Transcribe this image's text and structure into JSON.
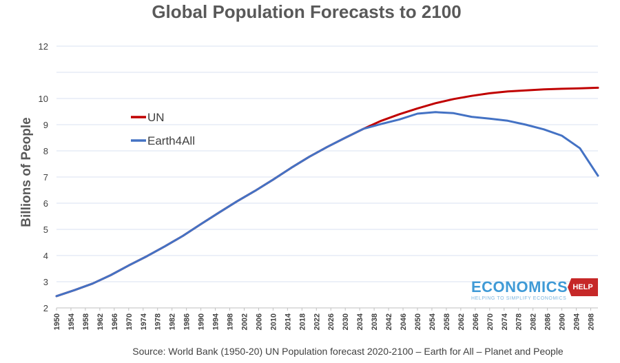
{
  "chart_data": {
    "type": "line",
    "title": "Global Population Forecasts to 2100",
    "xlabel": "",
    "ylabel": "Billions of  People",
    "ylim": [
      2,
      12
    ],
    "xlim": [
      1950,
      2100
    ],
    "yticks": [
      2,
      3,
      4,
      5,
      6,
      7,
      8,
      9,
      10,
      12
    ],
    "xticks": [
      1950,
      1954,
      1958,
      1962,
      1966,
      1970,
      1974,
      1978,
      1982,
      1986,
      1990,
      1994,
      1998,
      2002,
      2006,
      2010,
      2014,
      2018,
      2022,
      2026,
      2030,
      2034,
      2038,
      2042,
      2046,
      2050,
      2054,
      2058,
      2062,
      2066,
      2070,
      2074,
      2078,
      2082,
      2086,
      2090,
      2094,
      2098
    ],
    "grid": true,
    "legend_position": "upper-left",
    "series": [
      {
        "name": "UN",
        "color": "#c00000",
        "x": [
          1950,
          1955,
          1960,
          1965,
          1970,
          1975,
          1980,
          1985,
          1990,
          1995,
          2000,
          2005,
          2010,
          2015,
          2020,
          2025,
          2030,
          2035,
          2040,
          2045,
          2050,
          2055,
          2060,
          2065,
          2070,
          2075,
          2080,
          2085,
          2090,
          2095,
          2100
        ],
        "values": [
          2.45,
          2.68,
          2.93,
          3.25,
          3.62,
          3.97,
          4.35,
          4.75,
          5.2,
          5.64,
          6.07,
          6.47,
          6.9,
          7.35,
          7.77,
          8.15,
          8.5,
          8.84,
          9.15,
          9.4,
          9.62,
          9.82,
          9.98,
          10.1,
          10.2,
          10.27,
          10.31,
          10.35,
          10.37,
          10.39,
          10.41
        ]
      },
      {
        "name": "Earth4All",
        "color": "#4472c4",
        "x": [
          1950,
          1955,
          1960,
          1965,
          1970,
          1975,
          1980,
          1985,
          1990,
          1995,
          2000,
          2005,
          2010,
          2015,
          2020,
          2025,
          2030,
          2035,
          2040,
          2045,
          2050,
          2055,
          2060,
          2065,
          2070,
          2075,
          2080,
          2085,
          2090,
          2095,
          2100
        ],
        "values": [
          2.45,
          2.68,
          2.93,
          3.25,
          3.62,
          3.97,
          4.35,
          4.75,
          5.2,
          5.64,
          6.07,
          6.47,
          6.9,
          7.35,
          7.77,
          8.15,
          8.5,
          8.84,
          9.03,
          9.2,
          9.42,
          9.48,
          9.44,
          9.3,
          9.23,
          9.15,
          9.0,
          8.82,
          8.58,
          8.1,
          7.05
        ]
      }
    ],
    "source": "Source: World Bank (1950-20) UN Population forecast 2020-2100 – Earth for All – Planet and People"
  },
  "logo": {
    "name": "ECONOMICS",
    "badge": "HELP",
    "tagline": "HELPING TO SIMPLIFY ECONOMICS"
  }
}
